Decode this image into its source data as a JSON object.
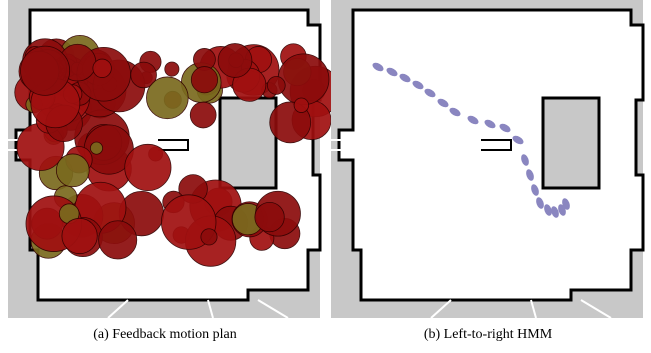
{
  "figures": [
    {
      "caption": "(a) Feedback motion plan"
    },
    {
      "caption": "(b) Left-to-right HMM"
    }
  ]
}
